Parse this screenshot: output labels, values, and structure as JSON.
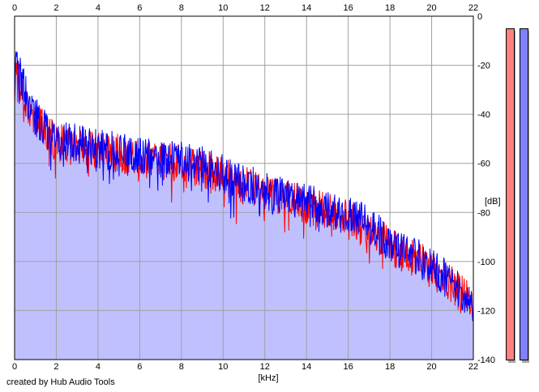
{
  "chart_data": {
    "type": "area",
    "xlabel": "[kHz]",
    "ylabel": "[dB]",
    "xlim": [
      0,
      22
    ],
    "ylim": [
      -140,
      0
    ],
    "x_ticks": [
      0,
      2,
      4,
      6,
      8,
      10,
      12,
      14,
      16,
      18,
      20,
      22
    ],
    "x_tick_labels": [
      "0",
      "2",
      "4",
      "6",
      "8",
      "10",
      "12",
      "14",
      "16",
      "18",
      "20",
      "22"
    ],
    "y_ticks": [
      0,
      -20,
      -40,
      -60,
      -80,
      -100,
      -120,
      -140
    ],
    "y_tick_labels": [
      "0",
      "-20",
      "-40",
      "-60",
      "-80",
      "-100",
      "-120",
      "-140"
    ],
    "grid": true,
    "fill_color": "#c0c0ff",
    "series": [
      {
        "color": "#ff0000",
        "x": [
          0,
          0.1,
          0.2,
          0.4,
          0.7,
          1,
          1.5,
          2,
          3,
          4,
          5,
          6,
          7,
          8,
          9,
          10,
          11,
          12,
          13,
          14,
          15,
          16,
          17,
          18,
          19,
          20,
          21,
          21.5,
          22
        ],
        "y": [
          -32,
          -18,
          -22,
          -30,
          -38,
          -42,
          -47,
          -51,
          -53,
          -55,
          -56,
          -58,
          -59,
          -60,
          -62,
          -65,
          -69,
          -72,
          -74,
          -77,
          -80,
          -82,
          -86,
          -94,
          -98,
          -103,
          -110,
          -114,
          -118
        ]
      },
      {
        "color": "#0000ff",
        "x": [
          0,
          0.1,
          0.2,
          0.4,
          0.7,
          1,
          1.5,
          2,
          3,
          4,
          5,
          6,
          7,
          8,
          9,
          10,
          11,
          12,
          13,
          14,
          15,
          16,
          17,
          18,
          19,
          20,
          21,
          21.5,
          22
        ],
        "y": [
          -30,
          -14,
          -20,
          -28,
          -37,
          -41,
          -46,
          -50,
          -52,
          -54,
          -55,
          -57,
          -58,
          -59,
          -61,
          -64,
          -68,
          -71,
          -73,
          -76,
          -79,
          -81,
          -85,
          -93,
          -97,
          -102,
          -109,
          -113,
          -117
        ]
      }
    ],
    "meters": [
      {
        "color": "#ff8080"
      },
      {
        "color": "#8080ff"
      }
    ]
  },
  "footer": {
    "credit": "created by Hub Audio Tools"
  }
}
